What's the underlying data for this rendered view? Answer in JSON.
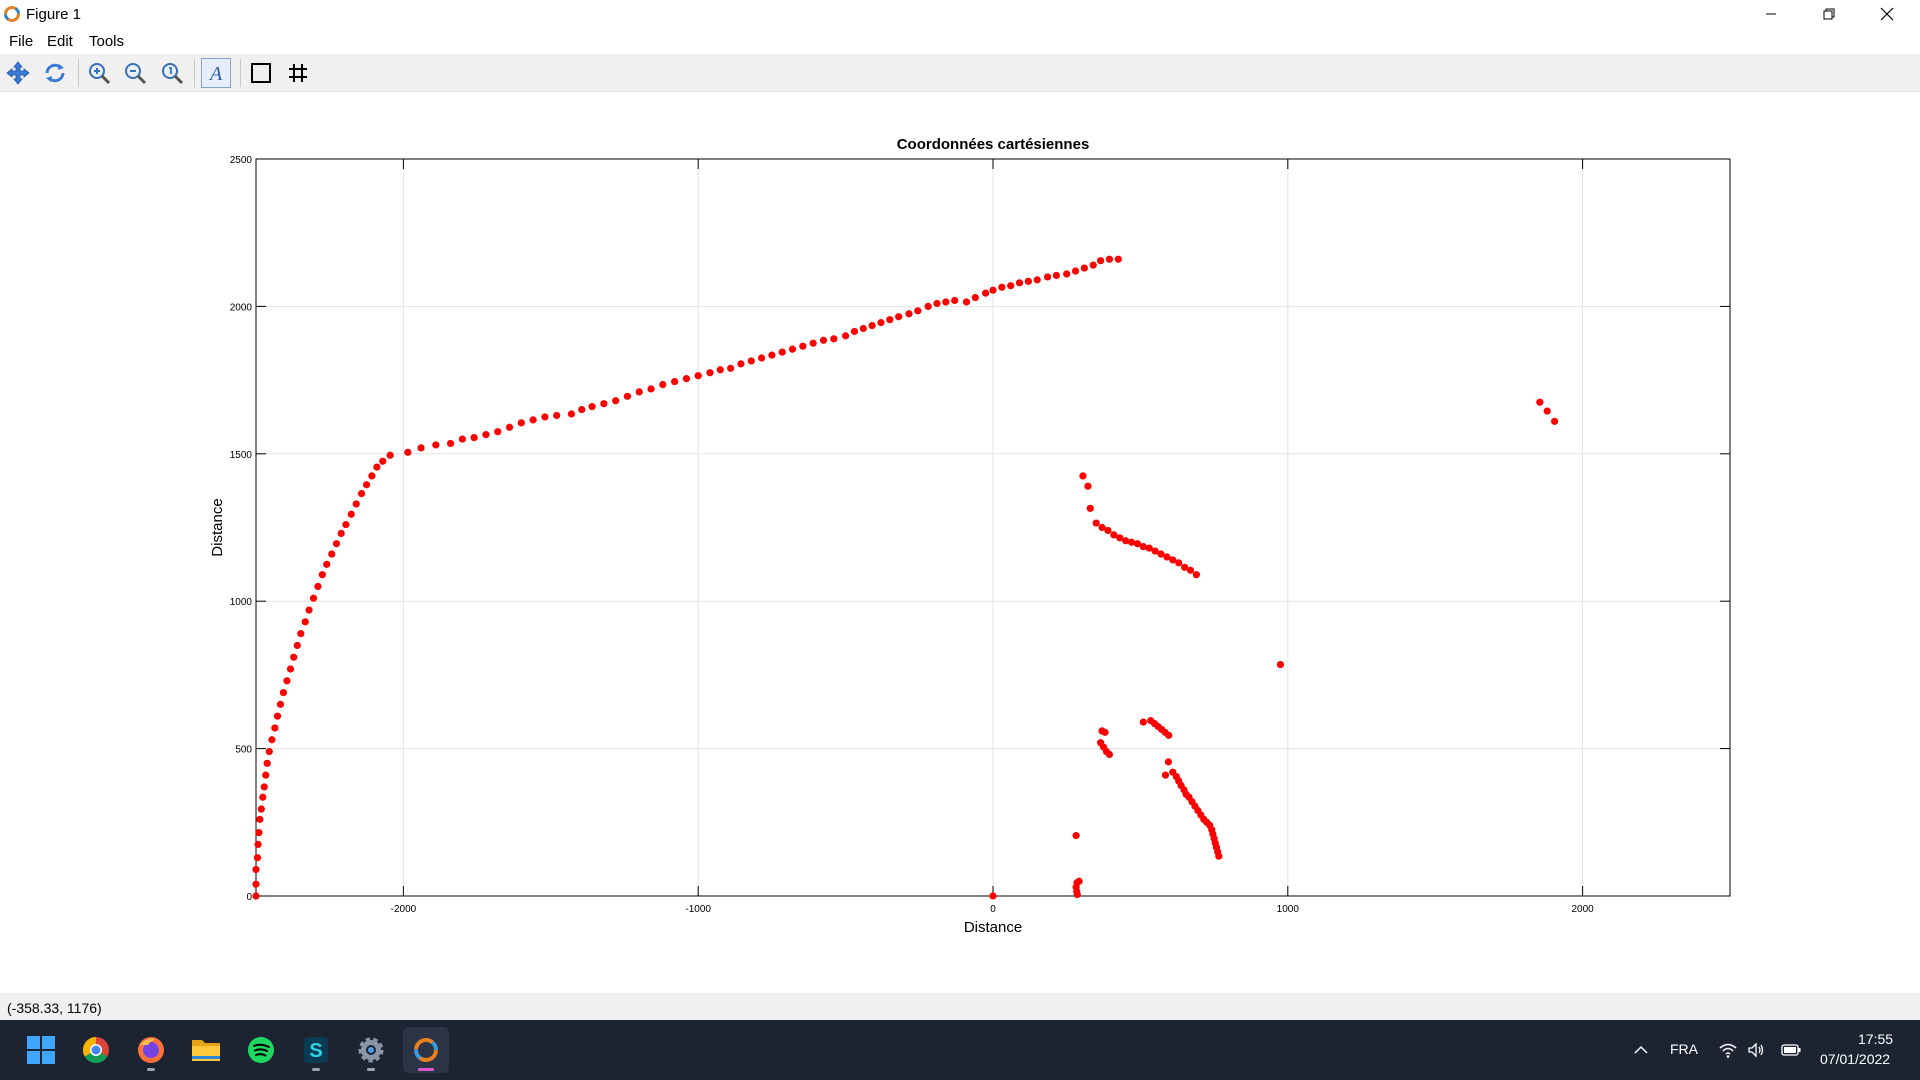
{
  "window": {
    "title": "Figure 1"
  },
  "menu": {
    "items": [
      "File",
      "Edit",
      "Tools"
    ]
  },
  "toolbar": {
    "tools": [
      "pan-icon",
      "rotate-icon",
      "zoom-in-icon",
      "zoom-out-icon",
      "zoom-reset-icon",
      "text-annotation-icon",
      "axes-box-icon",
      "grid-icon"
    ]
  },
  "status": {
    "coordinates": "(-358.33, 1176)"
  },
  "taskbar": {
    "apps": [
      "windows-start-icon",
      "chrome-icon",
      "firefox-icon",
      "file-explorer-icon",
      "spotify-icon",
      "app-s-icon",
      "settings-icon",
      "octave-icon"
    ],
    "language": "FRA",
    "time": "17:55",
    "date": "07/01/2022"
  },
  "colors": {
    "marker": "#ff0000",
    "taskbar": "#1c2432",
    "toolbar": "#f0f0f0"
  },
  "chart_data": {
    "type": "scatter",
    "title": "Coordonnées cartésiennes",
    "xlabel": "Distance",
    "ylabel": "Distance",
    "xlim": [
      -2500,
      2500
    ],
    "ylim": [
      0,
      2500
    ],
    "xticks": [
      -2000,
      -1000,
      0,
      1000,
      2000
    ],
    "yticks": [
      0,
      500,
      1000,
      1500,
      2000,
      2500
    ],
    "grid": true,
    "series": [
      {
        "color": "#ff0000",
        "marker": "dot",
        "points": [
          [
            -2500,
            0
          ],
          [
            -2500,
            40
          ],
          [
            -2500,
            90
          ],
          [
            -2495,
            130
          ],
          [
            -2493,
            175
          ],
          [
            -2490,
            215
          ],
          [
            -2487,
            260
          ],
          [
            -2482,
            295
          ],
          [
            -2477,
            335
          ],
          [
            -2472,
            370
          ],
          [
            -2467,
            410
          ],
          [
            -2462,
            450
          ],
          [
            -2455,
            490
          ],
          [
            -2446,
            530
          ],
          [
            -2436,
            570
          ],
          [
            -2427,
            610
          ],
          [
            -2417,
            650
          ],
          [
            -2407,
            690
          ],
          [
            -2395,
            730
          ],
          [
            -2383,
            770
          ],
          [
            -2372,
            810
          ],
          [
            -2360,
            850
          ],
          [
            -2348,
            890
          ],
          [
            -2333,
            930
          ],
          [
            -2320,
            970
          ],
          [
            -2305,
            1010
          ],
          [
            -2290,
            1050
          ],
          [
            -2275,
            1090
          ],
          [
            -2260,
            1125
          ],
          [
            -2243,
            1160
          ],
          [
            -2227,
            1195
          ],
          [
            -2211,
            1230
          ],
          [
            -2195,
            1260
          ],
          [
            -2177,
            1295
          ],
          [
            -2160,
            1330
          ],
          [
            -2142,
            1365
          ],
          [
            -2125,
            1395
          ],
          [
            -2107,
            1425
          ],
          [
            -2090,
            1455
          ],
          [
            -2070,
            1475
          ],
          [
            -2045,
            1495
          ],
          [
            -1985,
            1505
          ],
          [
            -1940,
            1520
          ],
          [
            -1890,
            1530
          ],
          [
            -1840,
            1535
          ],
          [
            -1800,
            1550
          ],
          [
            -1760,
            1555
          ],
          [
            -1720,
            1565
          ],
          [
            -1680,
            1575
          ],
          [
            -1640,
            1590
          ],
          [
            -1600,
            1605
          ],
          [
            -1560,
            1615
          ],
          [
            -1520,
            1625
          ],
          [
            -1480,
            1630
          ],
          [
            -1430,
            1635
          ],
          [
            -1395,
            1650
          ],
          [
            -1360,
            1660
          ],
          [
            -1320,
            1670
          ],
          [
            -1280,
            1680
          ],
          [
            -1240,
            1695
          ],
          [
            -1200,
            1710
          ],
          [
            -1160,
            1720
          ],
          [
            -1120,
            1735
          ],
          [
            -1080,
            1745
          ],
          [
            -1040,
            1755
          ],
          [
            -1000,
            1765
          ],
          [
            -960,
            1775
          ],
          [
            -925,
            1785
          ],
          [
            -890,
            1790
          ],
          [
            -855,
            1805
          ],
          [
            -820,
            1815
          ],
          [
            -785,
            1825
          ],
          [
            -750,
            1835
          ],
          [
            -715,
            1845
          ],
          [
            -680,
            1855
          ],
          [
            -645,
            1865
          ],
          [
            -610,
            1875
          ],
          [
            -575,
            1885
          ],
          [
            -540,
            1890
          ],
          [
            -500,
            1900
          ],
          [
            -470,
            1915
          ],
          [
            -440,
            1925
          ],
          [
            -410,
            1935
          ],
          [
            -380,
            1945
          ],
          [
            -350,
            1955
          ],
          [
            -320,
            1965
          ],
          [
            -285,
            1975
          ],
          [
            -255,
            1985
          ],
          [
            -220,
            2000
          ],
          [
            -190,
            2010
          ],
          [
            -160,
            2015
          ],
          [
            -130,
            2020
          ],
          [
            -90,
            2015
          ],
          [
            -60,
            2030
          ],
          [
            -25,
            2045
          ],
          [
            0,
            2055
          ],
          [
            30,
            2065
          ],
          [
            60,
            2070
          ],
          [
            90,
            2080
          ],
          [
            120,
            2085
          ],
          [
            150,
            2090
          ],
          [
            185,
            2100
          ],
          [
            215,
            2105
          ],
          [
            250,
            2110
          ],
          [
            280,
            2120
          ],
          [
            310,
            2130
          ],
          [
            340,
            2140
          ],
          [
            365,
            2155
          ],
          [
            395,
            2160
          ],
          [
            425,
            2160
          ],
          [
            305,
            1425
          ],
          [
            322,
            1390
          ],
          [
            330,
            1315
          ],
          [
            350,
            1265
          ],
          [
            370,
            1250
          ],
          [
            390,
            1240
          ],
          [
            410,
            1225
          ],
          [
            430,
            1215
          ],
          [
            450,
            1205
          ],
          [
            470,
            1200
          ],
          [
            490,
            1195
          ],
          [
            510,
            1185
          ],
          [
            530,
            1180
          ],
          [
            550,
            1170
          ],
          [
            570,
            1160
          ],
          [
            590,
            1150
          ],
          [
            610,
            1140
          ],
          [
            630,
            1130
          ],
          [
            650,
            1115
          ],
          [
            670,
            1105
          ],
          [
            690,
            1090
          ],
          [
            1855,
            1675
          ],
          [
            1880,
            1645
          ],
          [
            1905,
            1610
          ],
          [
            975,
            785
          ],
          [
            370,
            560
          ],
          [
            380,
            555
          ],
          [
            365,
            520
          ],
          [
            375,
            505
          ],
          [
            385,
            490
          ],
          [
            395,
            480
          ],
          [
            510,
            590
          ],
          [
            535,
            595
          ],
          [
            548,
            585
          ],
          [
            560,
            575
          ],
          [
            572,
            565
          ],
          [
            584,
            555
          ],
          [
            596,
            545
          ],
          [
            595,
            455
          ],
          [
            585,
            410
          ],
          [
            610,
            420
          ],
          [
            622,
            405
          ],
          [
            630,
            390
          ],
          [
            638,
            375
          ],
          [
            648,
            360
          ],
          [
            655,
            345
          ],
          [
            665,
            335
          ],
          [
            675,
            320
          ],
          [
            685,
            305
          ],
          [
            695,
            290
          ],
          [
            705,
            275
          ],
          [
            715,
            260
          ],
          [
            725,
            250
          ],
          [
            735,
            240
          ],
          [
            742,
            225
          ],
          [
            746,
            210
          ],
          [
            750,
            195
          ],
          [
            754,
            180
          ],
          [
            758,
            165
          ],
          [
            762,
            150
          ],
          [
            766,
            135
          ],
          [
            282,
            205
          ],
          [
            285,
            45
          ],
          [
            292,
            50
          ],
          [
            282,
            30
          ],
          [
            284,
            15
          ],
          [
            286,
            5
          ],
          [
            0,
            0
          ]
        ]
      }
    ]
  }
}
